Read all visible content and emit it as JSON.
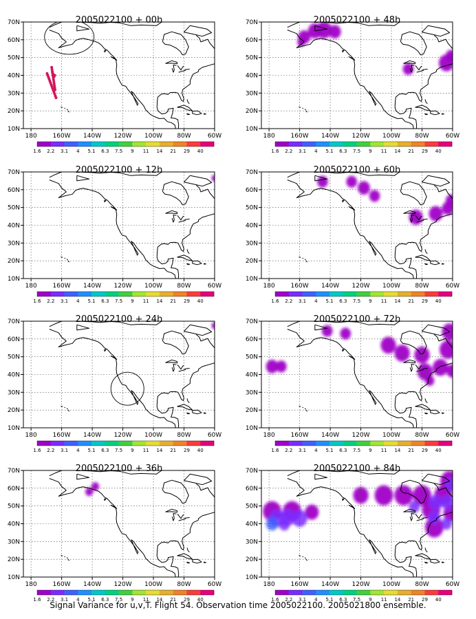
{
  "footer": "Signal Variance for u,v,T. Flight 54. Observation time 2005022100. 2005021800 ensemble.",
  "map_axes": {
    "x_ticks": [
      "180",
      "160W",
      "140W",
      "120W",
      "100W",
      "80W",
      "60W"
    ],
    "y_ticks": [
      "10N",
      "20N",
      "30N",
      "40N",
      "50N",
      "60N",
      "70N"
    ]
  },
  "colorbar": {
    "labels": [
      "1.6",
      "2.2",
      "3.1",
      "4",
      "5.1",
      "6.3",
      "7.5",
      "9",
      "11",
      "14",
      "21",
      "29",
      "40"
    ],
    "colors": [
      "#a000c8",
      "#7a2cff",
      "#4060ff",
      "#1e90ff",
      "#00c8c8",
      "#00d080",
      "#40d040",
      "#a0e632",
      "#e6dc32",
      "#e6af2d",
      "#f08228",
      "#fa3c3c",
      "#e6007a"
    ]
  },
  "panels": [
    {
      "title": "2005022100 + 00h"
    },
    {
      "title": "2005022100 + 48h"
    },
    {
      "title": "2005022100 + 12h"
    },
    {
      "title": "2005022100 + 60h"
    },
    {
      "title": "2005022100 + 24h"
    },
    {
      "title": "2005022100 + 72h"
    },
    {
      "title": "2005022100 + 36h"
    },
    {
      "title": "2005022100 + 84h"
    }
  ]
}
